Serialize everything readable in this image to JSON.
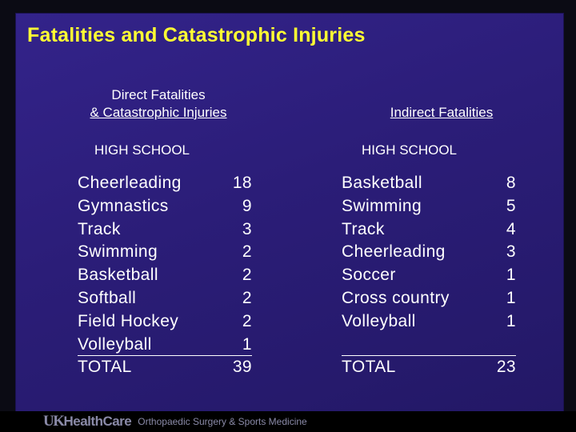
{
  "title": "Fatalities and Catastrophic Injuries",
  "left": {
    "heading_line1": "Direct Fatalities",
    "heading_line2": "& Catastrophic Injuries",
    "subheading": "HIGH SCHOOL",
    "rows": [
      {
        "sport": "Cheerleading",
        "count": "18"
      },
      {
        "sport": "Gymnastics",
        "count": "9"
      },
      {
        "sport": "Track",
        "count": "3"
      },
      {
        "sport": "Swimming",
        "count": "2"
      },
      {
        "sport": "Basketball",
        "count": "2"
      },
      {
        "sport": "Softball",
        "count": "2"
      },
      {
        "sport": "Field Hockey",
        "count": "2"
      },
      {
        "sport": "Volleyball",
        "count": "1"
      }
    ],
    "total_label": "TOTAL",
    "total_value": "39"
  },
  "right": {
    "heading": "Indirect Fatalities",
    "subheading": "HIGH SCHOOL",
    "rows": [
      {
        "sport": "Basketball",
        "count": "8"
      },
      {
        "sport": "Swimming",
        "count": "5"
      },
      {
        "sport": "Track",
        "count": "4"
      },
      {
        "sport": "Cheerleading",
        "count": "3"
      },
      {
        "sport": "Soccer",
        "count": "1"
      },
      {
        "sport": "Cross country",
        "count": "1"
      },
      {
        "sport": "Volleyball",
        "count": "1"
      }
    ],
    "total_label": "TOTAL",
    "total_value": "23"
  },
  "footer": {
    "logo_uk": "UK",
    "logo_rest": "HealthCare",
    "department": "Orthopaedic Surgery & Sports Medicine"
  },
  "colors": {
    "background": "#2b1d78",
    "title": "#ffff33",
    "text": "#ffffff"
  }
}
